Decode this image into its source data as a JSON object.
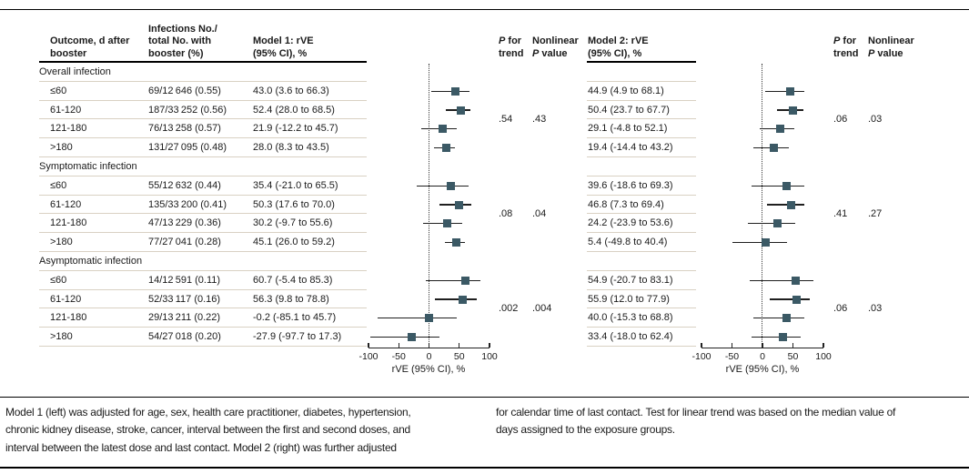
{
  "figure": {
    "headers": {
      "outcome": {
        "line1": "Outcome, d after",
        "line2": "booster"
      },
      "infections": {
        "line1": "Infections No./",
        "line2": "total No. with",
        "line3": "booster (%)"
      },
      "model1": {
        "line1": "Model 1: rVE",
        "line2": "(95% CI), %"
      },
      "model2": {
        "line1": "Model 2: rVE",
        "line2": "(95% CI), %"
      },
      "p_trend": {
        "p": "P",
        "rest": " for",
        "line2": "trend"
      },
      "nonlinear": {
        "line1": "Nonlinear",
        "p": "P",
        "rest": " value"
      }
    },
    "axis": {
      "label": "rVE (95% CI), %",
      "ticks": [
        -100,
        -50,
        0,
        50,
        100
      ],
      "min": -100,
      "max": 100
    },
    "footnotes": {
      "left_lines": [
        "Model 1 (left) was adjusted for age, sex, health care practitioner, diabetes, hypertension,",
        "chronic kidney disease, stroke, cancer, interval between the first and second doses, and",
        "interval between the latest dose and last contact. Model 2 (right) was further adjusted"
      ],
      "right_lines": [
        "for calendar time of last contact. Test for linear trend was based on the median value of",
        "days assigned to the exposure groups."
      ]
    },
    "colors": {
      "marker": "#3b5965",
      "ci_line": "#1f1f1f",
      "row_line": "#d9d1c3",
      "rule": "#000000"
    }
  },
  "table": {
    "sections": [
      {
        "label": "Overall infection",
        "rows": [
          {
            "outcome": "≤60",
            "infections": "69/12 646 (0.55)",
            "model1": "43.0 (3.6 to 66.3)",
            "model2": "44.9 (4.9 to 68.1)"
          },
          {
            "outcome": "61-120",
            "infections": "187/33 252 (0.56)",
            "model1": "52.4 (28.0 to 68.5)",
            "model2": "50.4 (23.7 to 67.7)"
          },
          {
            "outcome": "121-180",
            "infections": "76/13 258 (0.57)",
            "model1": "21.9 (-12.2 to 45.7)",
            "model2": "29.1 (-4.8 to 52.1)"
          },
          {
            "outcome": ">180",
            "infections": "131/27 095 (0.48)",
            "model1": "28.0 (8.3 to 43.5)",
            "model2": "19.4 (-14.4 to 43.2)"
          }
        ]
      },
      {
        "label": "Symptomatic infection",
        "rows": [
          {
            "outcome": "≤60",
            "infections": "55/12 632 (0.44)",
            "model1": "35.4 (-21.0 to 65.5)",
            "model2": "39.6 (-18.6 to 69.3)"
          },
          {
            "outcome": "61-120",
            "infections": "135/33 200 (0.41)",
            "model1": "50.3 (17.6 to 70.0)",
            "model2": "46.8 (7.3 to 69.4)"
          },
          {
            "outcome": "121-180",
            "infections": "47/13 229 (0.36)",
            "model1": "30.2 (-9.7 to 55.6)",
            "model2": "24.2 (-23.9 to 53.6)"
          },
          {
            "outcome": ">180",
            "infections": "77/27 041 (0.28)",
            "model1": "45.1 (26.0 to 59.2)",
            "model2": "5.4 (-49.8 to 40.4)"
          }
        ]
      },
      {
        "label": "Asymptomatic infection",
        "rows": [
          {
            "outcome": "≤60",
            "infections": "14/12 591 (0.11)",
            "model1": "60.7 (-5.4 to 85.3)",
            "model2": "54.9 (-20.7 to 83.1)"
          },
          {
            "outcome": "61-120",
            "infections": "52/33 117 (0.16)",
            "model1": "56.3 (9.8 to 78.8)",
            "model2": "55.9 (12.0 to 77.9)"
          },
          {
            "outcome": "121-180",
            "infections": "29/13 211 (0.22)",
            "model1": "-0.2 (-85.1 to 45.7)",
            "model2": "40.0 (-15.3 to 68.8)"
          },
          {
            "outcome": ">180",
            "infections": "54/27 018 (0.20)",
            "model1": "-27.9 (-97.7 to 17.3)",
            "model2": "33.4 (-18.0 to 62.4)"
          }
        ]
      }
    ]
  },
  "chart_data": [
    {
      "type": "forest",
      "title": "Model 1: rVE (95% CI), %",
      "xlabel": "rVE (95% CI), %",
      "xlim": [
        -100,
        100
      ],
      "xticks": [
        -100,
        -50,
        0,
        50,
        100
      ],
      "categories": [
        "≤60",
        "61-120",
        "121-180",
        ">180"
      ],
      "series": [
        {
          "group": "Overall infection",
          "est": [
            43.0,
            52.4,
            21.9,
            28.0
          ],
          "lo": [
            3.6,
            28.0,
            -12.2,
            8.3
          ],
          "hi": [
            66.3,
            68.5,
            45.7,
            43.5
          ],
          "p_trend": ".54",
          "p_nonlinear": ".43"
        },
        {
          "group": "Symptomatic infection",
          "est": [
            35.4,
            50.3,
            30.2,
            45.1
          ],
          "lo": [
            -21.0,
            17.6,
            -9.7,
            26.0
          ],
          "hi": [
            65.5,
            70.0,
            55.6,
            59.2
          ],
          "p_trend": ".08",
          "p_nonlinear": ".04"
        },
        {
          "group": "Asymptomatic infection",
          "est": [
            60.7,
            56.3,
            -0.2,
            -27.9
          ],
          "lo": [
            -5.4,
            9.8,
            -85.1,
            -97.7
          ],
          "hi": [
            85.3,
            78.8,
            45.7,
            17.3
          ],
          "p_trend": ".002",
          "p_nonlinear": ".004"
        }
      ]
    },
    {
      "type": "forest",
      "title": "Model 2: rVE (95% CI), %",
      "xlabel": "rVE (95% CI), %",
      "xlim": [
        -100,
        100
      ],
      "xticks": [
        -100,
        -50,
        0,
        50,
        100
      ],
      "categories": [
        "≤60",
        "61-120",
        "121-180",
        ">180"
      ],
      "series": [
        {
          "group": "Overall infection",
          "est": [
            44.9,
            50.4,
            29.1,
            19.4
          ],
          "lo": [
            4.9,
            23.7,
            -4.8,
            -14.4
          ],
          "hi": [
            68.1,
            67.7,
            52.1,
            43.2
          ],
          "p_trend": ".06",
          "p_nonlinear": ".03"
        },
        {
          "group": "Symptomatic infection",
          "est": [
            39.6,
            46.8,
            24.2,
            5.4
          ],
          "lo": [
            -18.6,
            7.3,
            -23.9,
            -49.8
          ],
          "hi": [
            69.3,
            69.4,
            53.6,
            40.4
          ],
          "p_trend": ".41",
          "p_nonlinear": ".27"
        },
        {
          "group": "Asymptomatic infection",
          "est": [
            54.9,
            55.9,
            40.0,
            33.4
          ],
          "lo": [
            -20.7,
            12.0,
            -15.3,
            -18.0
          ],
          "hi": [
            83.1,
            77.9,
            68.8,
            62.4
          ],
          "p_trend": ".06",
          "p_nonlinear": ".03"
        }
      ]
    }
  ]
}
